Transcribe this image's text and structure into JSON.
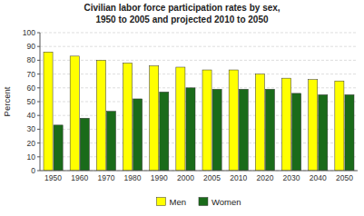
{
  "chart_data": {
    "type": "bar",
    "title": "Civilian labor force participation rates by sex,",
    "subtitle": "1950 to 2005 and projected 2010 to 2050",
    "y_label": "Percent",
    "categories": [
      "1950",
      "1960",
      "1970",
      "1980",
      "1990",
      "2000",
      "2005",
      "2010",
      "2020",
      "2030",
      "2040",
      "2050"
    ],
    "series": [
      {
        "name": "Men",
        "color": "#FFFF00",
        "values": [
          86,
          83,
          80,
          78,
          76,
          75,
          73,
          73,
          70,
          67,
          66,
          65
        ]
      },
      {
        "name": "Women",
        "color": "#1a6b1a",
        "values": [
          33,
          38,
          43,
          52,
          57,
          60,
          59,
          59,
          59,
          56,
          55,
          55
        ]
      }
    ],
    "ylim": [
      0,
      100
    ],
    "yticks": [
      0,
      10,
      20,
      30,
      40,
      50,
      60,
      70,
      80,
      90,
      100
    ],
    "grid": true,
    "legend": "bottom"
  }
}
